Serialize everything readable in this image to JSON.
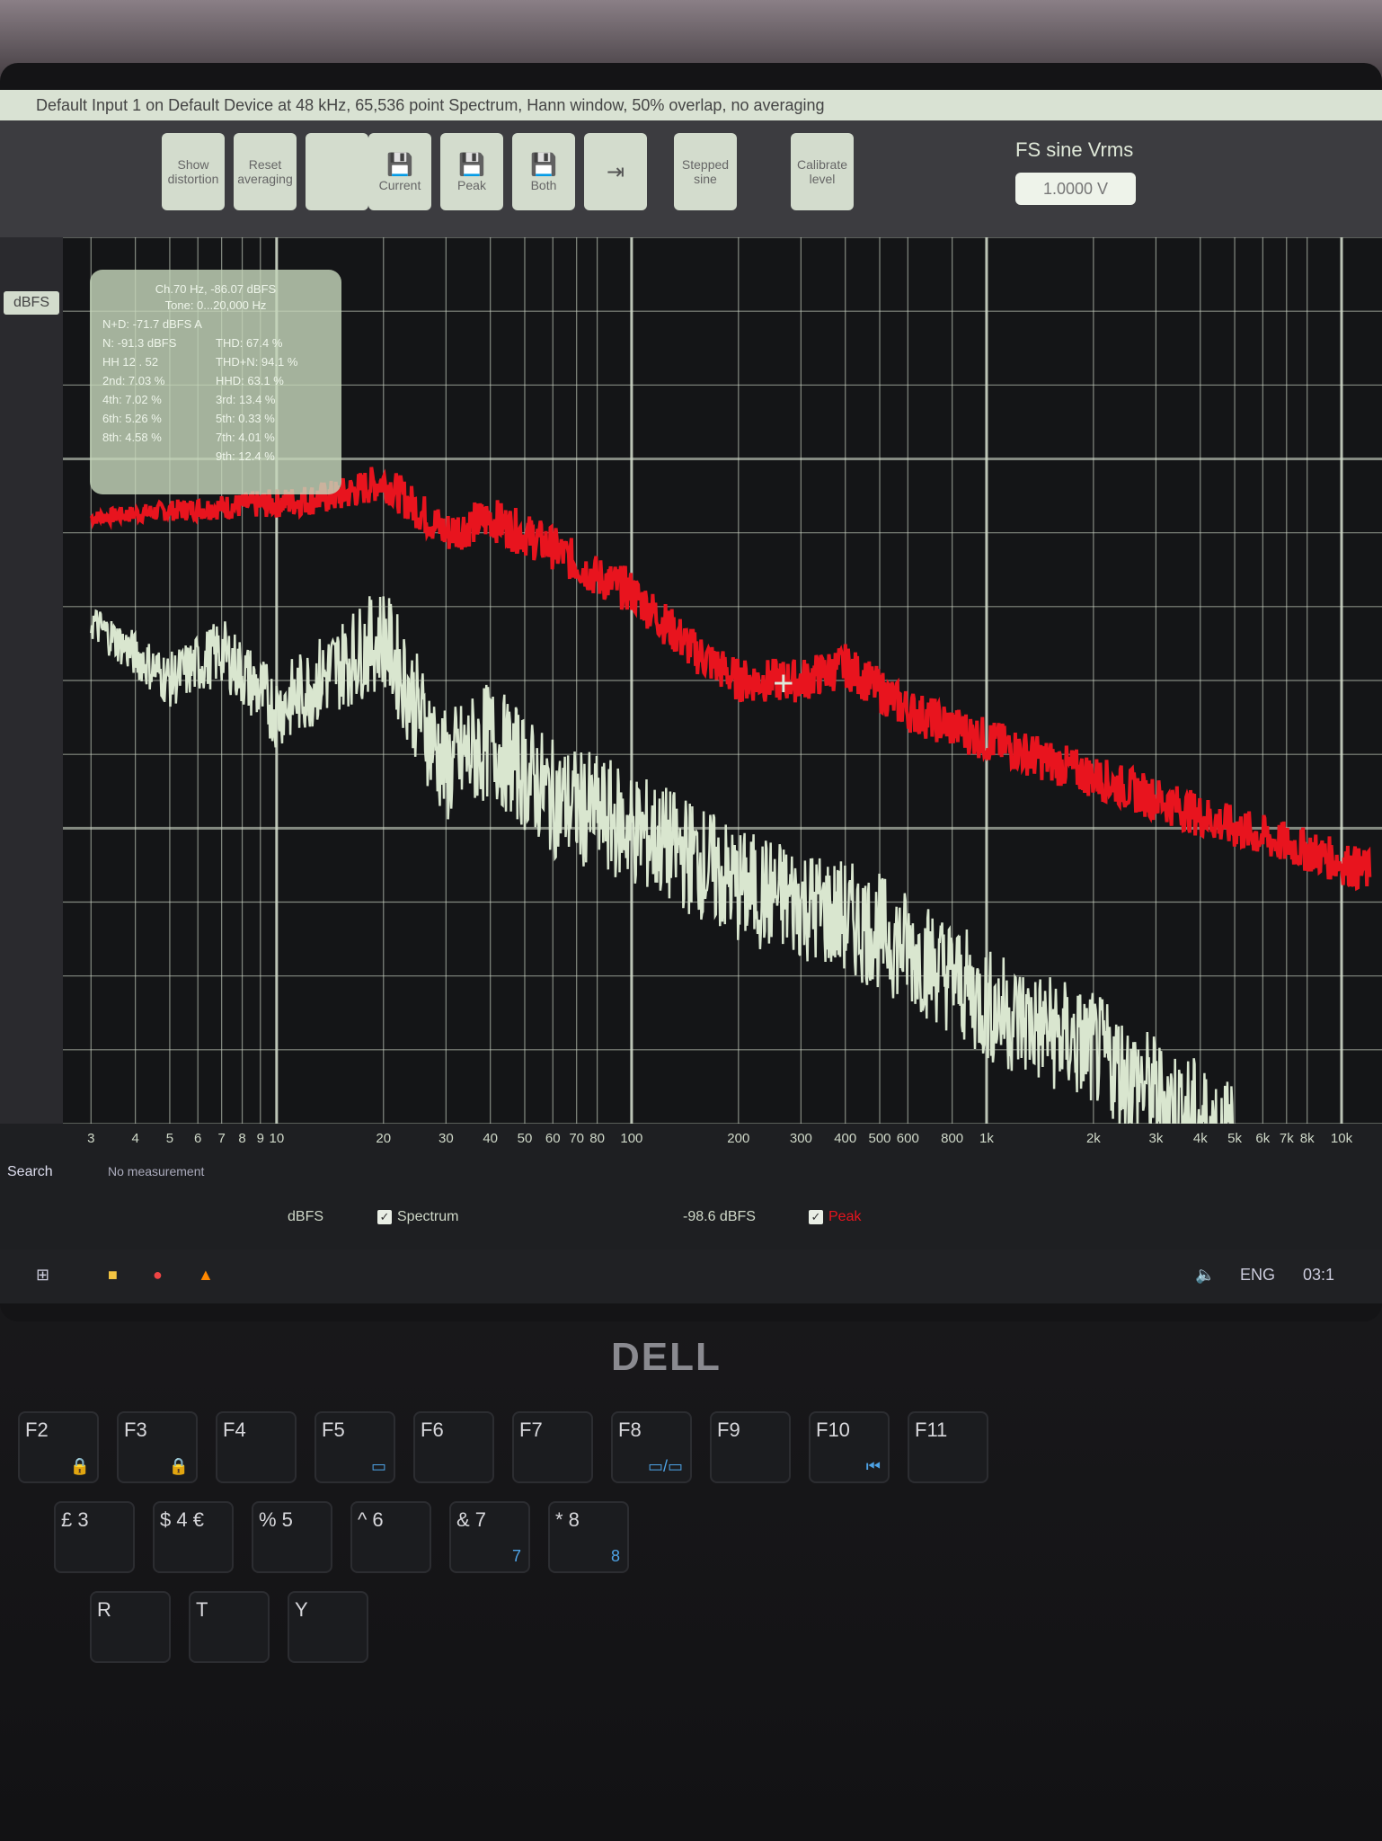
{
  "window": {
    "title": "Default Input 1 on Default Device at 48 kHz, 65,536 point Spectrum, Hann window, 50% overlap, no averaging"
  },
  "toolbar": {
    "buttons": [
      {
        "label": "Show distortion",
        "icon": ""
      },
      {
        "label": "Reset averaging",
        "icon": ""
      },
      {
        "label": "",
        "icon": ""
      },
      {
        "label": "Current",
        "icon": "save-icon"
      },
      {
        "label": "Peak",
        "icon": "save-icon"
      },
      {
        "label": "Both",
        "icon": "save-icon"
      },
      {
        "label": "",
        "icon": "import-icon"
      },
      {
        "label": "Stepped sine",
        "icon": ""
      },
      {
        "label": "Calibrate level",
        "icon": ""
      }
    ],
    "fs_sine_label": "FS sine Vrms",
    "fs_sine_value": "1.0000 V"
  },
  "left_rail": {
    "unit_select": "dBFS"
  },
  "distortion_panel": {
    "fundamental": "Ch.70 Hz, -86.07 dBFS",
    "range": "Tone: 0...20,000 Hz",
    "rows": [
      [
        "N+D: -71.7 dBFS A",
        ""
      ],
      [
        "N: -91.3 dBFS",
        "THD: 67.4 %"
      ],
      [
        "HH 12 . 52",
        "THD+N: 94.1 %"
      ],
      [
        "2nd: 7.03 %",
        "HHD: 63.1 %"
      ],
      [
        "4th: 7.02 %",
        "3rd: 13.4 %"
      ],
      [
        "6th: 5.26 %",
        "5th: 0.33 %"
      ],
      [
        "8th: 4.58 %",
        "7th: 4.01 %"
      ],
      [
        "",
        "9th: 12.4 %"
      ]
    ]
  },
  "bottom_bar": {
    "search_label": "Search",
    "no_measurement": "No measurement",
    "unit": "dBFS",
    "spectrum_label": "Spectrum",
    "spectrum_checked": true,
    "level_readout": "-98.6 dBFS",
    "peak_label": "Peak",
    "peak_checked": true
  },
  "taskbar": {
    "language": "ENG",
    "time": "03:1"
  },
  "laptop": {
    "brand": "DELL"
  },
  "keyboard": {
    "keys": [
      {
        "label": "F2",
        "fn": "🔒"
      },
      {
        "label": "F3",
        "fn": "🔒"
      },
      {
        "label": "F4",
        "fn": ""
      },
      {
        "label": "F5",
        "fn": "▭"
      },
      {
        "label": "F6",
        "fn": ""
      },
      {
        "label": "F7",
        "fn": ""
      },
      {
        "label": "F8",
        "fn": "▭/▭"
      },
      {
        "label": "F9",
        "fn": ""
      },
      {
        "label": "F10",
        "fn": "⏮"
      },
      {
        "label": "F11",
        "fn": ""
      },
      {
        "label": "£ 3",
        "fn": ""
      },
      {
        "label": "$ 4 €",
        "fn": ""
      },
      {
        "label": "% 5",
        "fn": ""
      },
      {
        "label": "^ 6",
        "fn": ""
      },
      {
        "label": "& 7",
        "fn": "7"
      },
      {
        "label": "* 8",
        "fn": "8"
      },
      {
        "label": "R",
        "fn": ""
      },
      {
        "label": "T",
        "fn": ""
      },
      {
        "label": "Y",
        "fn": ""
      }
    ]
  },
  "chart_data": {
    "type": "line",
    "xscale": "log",
    "xlim": [
      2.5,
      13000
    ],
    "ylim": [
      -140,
      -20
    ],
    "grid": true,
    "x_tick_labels": [
      "3",
      "4",
      "5",
      "6",
      "7",
      "8",
      "9",
      "10",
      "20",
      "30",
      "40",
      "50",
      "60",
      "70",
      "80",
      "100",
      "200",
      "300",
      "400",
      "500",
      "600",
      "800",
      "1k",
      "2k",
      "3k",
      "4k",
      "5k",
      "6k",
      "7k",
      "8k",
      "10k"
    ],
    "x_tick_values": [
      3,
      4,
      5,
      6,
      7,
      8,
      9,
      10,
      20,
      30,
      40,
      50,
      60,
      70,
      80,
      100,
      200,
      300,
      400,
      500,
      600,
      800,
      1000,
      2000,
      3000,
      4000,
      5000,
      6000,
      7000,
      8000,
      10000
    ],
    "colors": {
      "peak": "#e8141e",
      "spectrum": "#d9e6cf",
      "grid": "#cfd8c8",
      "background": "#141517"
    },
    "series": [
      {
        "name": "Peak",
        "x": [
          3,
          5,
          10,
          15,
          20,
          30,
          40,
          60,
          80,
          100,
          150,
          200,
          300,
          400,
          600,
          1000,
          2000,
          3000,
          5000,
          8000,
          12000
        ],
        "y": [
          -58,
          -57,
          -56,
          -55,
          -53,
          -60,
          -58,
          -62,
          -66,
          -68,
          -76,
          -80,
          -80,
          -78,
          -84,
          -88,
          -93,
          -96,
          -100,
          -103,
          -106
        ]
      },
      {
        "name": "Spectrum",
        "x": [
          3,
          5,
          7,
          10,
          15,
          20,
          30,
          40,
          60,
          80,
          100,
          150,
          200,
          300,
          500,
          800,
          1000,
          2000,
          3000,
          5000
        ],
        "y": [
          -72,
          -80,
          -76,
          -84,
          -78,
          -74,
          -92,
          -88,
          -96,
          -98,
          -100,
          -104,
          -108,
          -110,
          -114,
          -120,
          -124,
          -130,
          -136,
          -142
        ]
      }
    ]
  }
}
